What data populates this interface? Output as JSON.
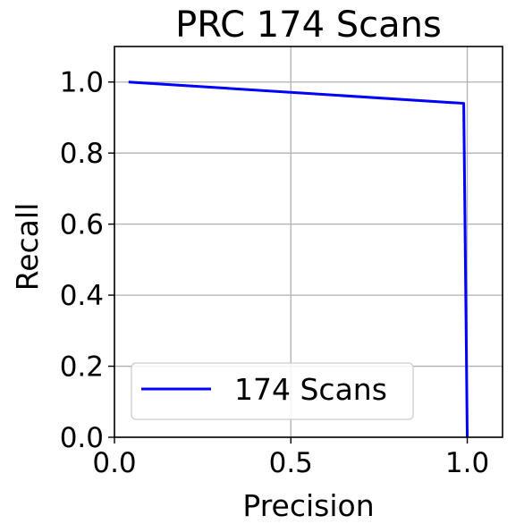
{
  "chart_data": {
    "type": "line",
    "title": "PRC 174 Scans",
    "xlabel": "Precision",
    "ylabel": "Recall",
    "xlim": [
      0.0,
      1.1
    ],
    "ylim": [
      0.0,
      1.1
    ],
    "xticks": [
      0.0,
      0.5,
      1.0
    ],
    "xtick_labels": [
      "0.0",
      "0.5",
      "1.0"
    ],
    "yticks": [
      0.0,
      0.2,
      0.4,
      0.6,
      0.8,
      1.0
    ],
    "ytick_labels": [
      "0.0",
      "0.2",
      "0.4",
      "0.6",
      "0.8",
      "1.0"
    ],
    "grid": true,
    "legend_position": "lower-left",
    "series": [
      {
        "name": "174 Scans",
        "color": "#0000ff",
        "x": [
          0.04,
          0.99,
          1.0
        ],
        "y": [
          1.0,
          0.94,
          0.0
        ]
      }
    ]
  }
}
